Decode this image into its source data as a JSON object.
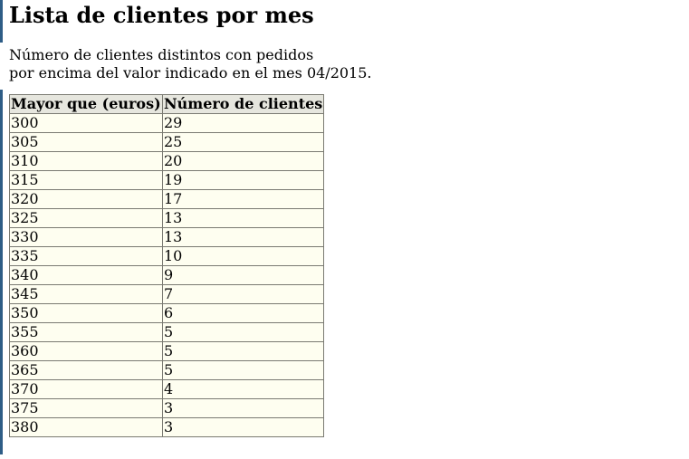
{
  "title": "Lista de clientes por mes",
  "description": {
    "line1": "Número de clientes distintos con pedidos",
    "line2": "por encima del valor indicado en el mes 04/2015."
  },
  "table": {
    "headers": [
      "Mayor que (euros)",
      "Número de clientes"
    ],
    "rows": [
      [
        "300",
        "29"
      ],
      [
        "305",
        "25"
      ],
      [
        "310",
        "20"
      ],
      [
        "315",
        "19"
      ],
      [
        "320",
        "17"
      ],
      [
        "325",
        "13"
      ],
      [
        "330",
        "13"
      ],
      [
        "335",
        "10"
      ],
      [
        "340",
        "9"
      ],
      [
        "345",
        "7"
      ],
      [
        "350",
        "6"
      ],
      [
        "355",
        "5"
      ],
      [
        "360",
        "5"
      ],
      [
        "365",
        "5"
      ],
      [
        "370",
        "4"
      ],
      [
        "375",
        "3"
      ],
      [
        "380",
        "3"
      ]
    ]
  },
  "colors": {
    "accent_bar": "#2e5d86",
    "header_bg": "#e6e6de",
    "cell_bg": "#fefef0",
    "border": "#7a7a72"
  }
}
